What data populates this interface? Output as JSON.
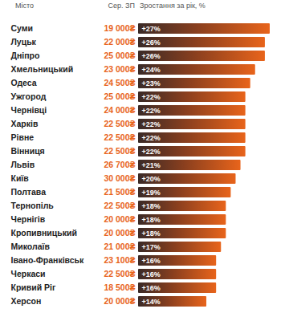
{
  "chart_data": {
    "type": "bar",
    "orientation": "horizontal",
    "column_headers": [
      "Місто",
      "Сер. ЗП",
      "Зростання за рік, %"
    ],
    "categories": [
      "Суми",
      "Луцьк",
      "Дніпро",
      "Хмельницький",
      "Одеса",
      "Ужгород",
      "Чернівці",
      "Харків",
      "Рівне",
      "Вінниця",
      "Львів",
      "Київ",
      "Полтава",
      "Тернопіль",
      "Чернігів",
      "Кропивницький",
      "Миколаїв",
      "Івано-Франківськ",
      "Черкаси",
      "Кривий Ріг",
      "Херсон"
    ],
    "salary_labels": [
      "19 000₴",
      "22 000₴",
      "25 000₴",
      "23 000₴",
      "24 500₴",
      "25 000₴",
      "24 000₴",
      "22 500₴",
      "22 500₴",
      "22 500₴",
      "26 700₴",
      "30 000₴",
      "21 500₴",
      "22 500₴",
      "20 000₴",
      "20 000₴",
      "21 000₴",
      "23 100₴",
      "22 500₴",
      "18 500₴",
      "20 000₴"
    ],
    "values": [
      27,
      26,
      26,
      24,
      23,
      22,
      22,
      22,
      22,
      22,
      21,
      20,
      19,
      18,
      18,
      18,
      17,
      16,
      16,
      16,
      14
    ],
    "value_labels": [
      "+27%",
      "+26%",
      "+26%",
      "+24%",
      "+23%",
      "+22%",
      "+22%",
      "+22%",
      "+22%",
      "+22%",
      "+21%",
      "+20%",
      "+19%",
      "+18%",
      "+18%",
      "+18%",
      "+17%",
      "+16%",
      "+16%",
      "+16%",
      "+14%"
    ],
    "xlim": [
      0,
      27
    ],
    "data_labels": true,
    "tick_labels": "y",
    "grid": false,
    "color": "#e8641b"
  }
}
